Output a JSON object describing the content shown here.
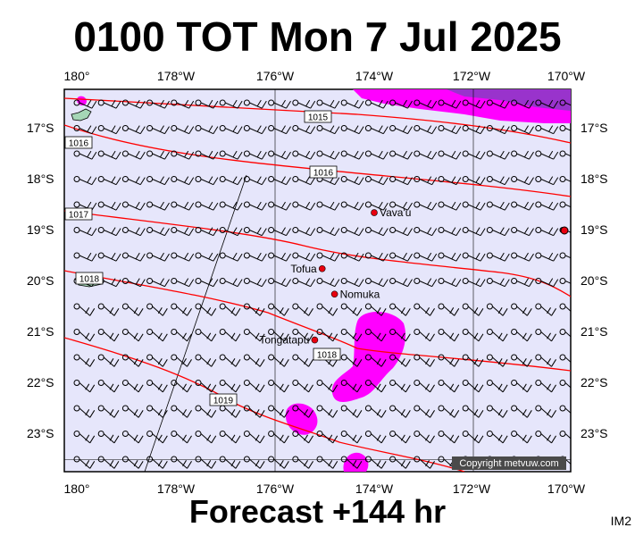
{
  "title": "0100 TOT Mon 7 Jul 2025",
  "footer": "Forecast +144 hr",
  "corner_label": "IM2",
  "copyright": "Copyright metvuw.com",
  "lon_labels": [
    "180°",
    "178°W",
    "176°W",
    "174°W",
    "172°W",
    "170°W"
  ],
  "lat_labels": [
    "17°S",
    "18°S",
    "19°S",
    "20°S",
    "21°S",
    "22°S",
    "23°S"
  ],
  "places": [
    {
      "name": "Vava'u",
      "lon": -174.0,
      "lat": -18.65
    },
    {
      "name": "Tofua",
      "lon": -175.05,
      "lat": -19.75
    },
    {
      "name": "Nomuka",
      "lon": -174.8,
      "lat": -20.25
    },
    {
      "name": "Tongatapu",
      "lon": -175.2,
      "lat": -21.15
    }
  ],
  "isobars": [
    {
      "label": "1015",
      "lat": -16.8
    },
    {
      "label": "1016",
      "lat": -17.9
    },
    {
      "label": "1017",
      "lat": -19.4
    },
    {
      "label": "1018",
      "lat": -20.9
    },
    {
      "label": "1019",
      "lat": -22.3
    }
  ],
  "colors": {
    "ocean": "#e6e6fb",
    "isobar": "#ff0000",
    "rain": "#ff00ff",
    "heavy_rain": "#9933cc",
    "place_dot": "#e8000f"
  }
}
